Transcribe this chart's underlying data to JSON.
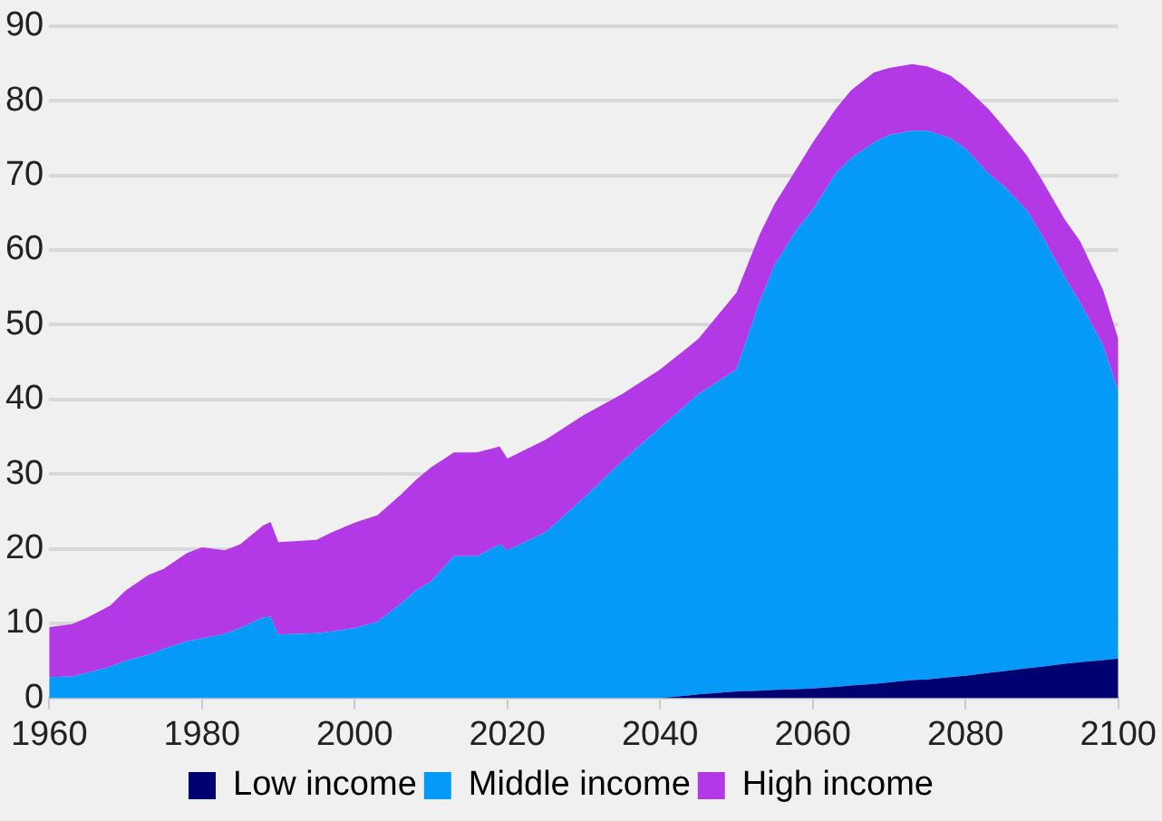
{
  "chart_data": {
    "type": "area",
    "stacked": true,
    "x": [
      1960,
      1963,
      1965,
      1968,
      1970,
      1973,
      1975,
      1978,
      1980,
      1983,
      1985,
      1988,
      1989,
      1990,
      1995,
      1997,
      2000,
      2003,
      2006,
      2008,
      2010,
      2013,
      2016,
      2019,
      2020,
      2025,
      2030,
      2035,
      2040,
      2045,
      2050,
      2053,
      2055,
      2058,
      2060,
      2063,
      2065,
      2068,
      2070,
      2073,
      2075,
      2078,
      2080,
      2083,
      2085,
      2088,
      2090,
      2093,
      2095,
      2098,
      2100
    ],
    "series": [
      {
        "name": "Low income",
        "color": "#000070",
        "values": [
          0,
          0,
          0,
          0,
          0,
          0,
          0,
          0,
          0,
          0,
          0,
          0,
          0,
          0,
          0,
          0,
          0,
          0,
          0,
          0,
          0,
          0,
          0,
          0,
          0,
          0,
          0,
          0,
          0,
          0.5,
          0.9,
          1.0,
          1.1,
          1.2,
          1.3,
          1.5,
          1.7,
          1.9,
          2.1,
          2.4,
          2.5,
          2.8,
          3.0,
          3.4,
          3.6,
          4.0,
          4.2,
          4.6,
          4.8,
          5.1,
          5.3
        ]
      },
      {
        "name": "Middle income",
        "color": "#0599f8",
        "values": [
          2.8,
          2.9,
          3.4,
          4.2,
          5.0,
          5.8,
          6.6,
          7.6,
          8.0,
          8.6,
          9.4,
          10.8,
          10.9,
          8.5,
          8.7,
          8.9,
          9.4,
          10.2,
          12.6,
          14.4,
          15.6,
          19.0,
          19.0,
          20.6,
          19.8,
          22.2,
          26.8,
          31.7,
          36.2,
          40.2,
          43.1,
          52.0,
          56.9,
          61.7,
          64.1,
          68.8,
          70.6,
          72.5,
          73.3,
          73.6,
          73.5,
          72.2,
          70.6,
          66.9,
          65.0,
          61.4,
          57.8,
          51.8,
          48.2,
          42.2,
          35.8
        ]
      },
      {
        "name": "High income",
        "color": "#b338e6",
        "values": [
          6.7,
          7.0,
          7.4,
          8.2,
          9.4,
          10.7,
          10.7,
          11.8,
          12.2,
          11.2,
          11.2,
          12.3,
          12.7,
          12.4,
          12.5,
          13.3,
          14.1,
          14.3,
          14.6,
          14.8,
          15.3,
          13.9,
          13.9,
          13.1,
          12.3,
          12.4,
          11.1,
          9.0,
          7.8,
          7.4,
          10.3,
          9.0,
          8.2,
          8.2,
          9.0,
          8.6,
          9.1,
          9.4,
          9.0,
          8.9,
          8.6,
          8.4,
          8.2,
          8.6,
          7.9,
          7.3,
          7.4,
          7.7,
          8.2,
          7.4,
          7.0
        ]
      }
    ],
    "xlim": [
      1960,
      2100
    ],
    "xticks": [
      1960,
      1980,
      2000,
      2020,
      2040,
      2060,
      2080,
      2100
    ],
    "ylim": [
      0,
      90
    ],
    "yticks": [
      0,
      10,
      20,
      30,
      40,
      50,
      60,
      70,
      80,
      90
    ],
    "grid": "y",
    "legend": "bottom"
  }
}
